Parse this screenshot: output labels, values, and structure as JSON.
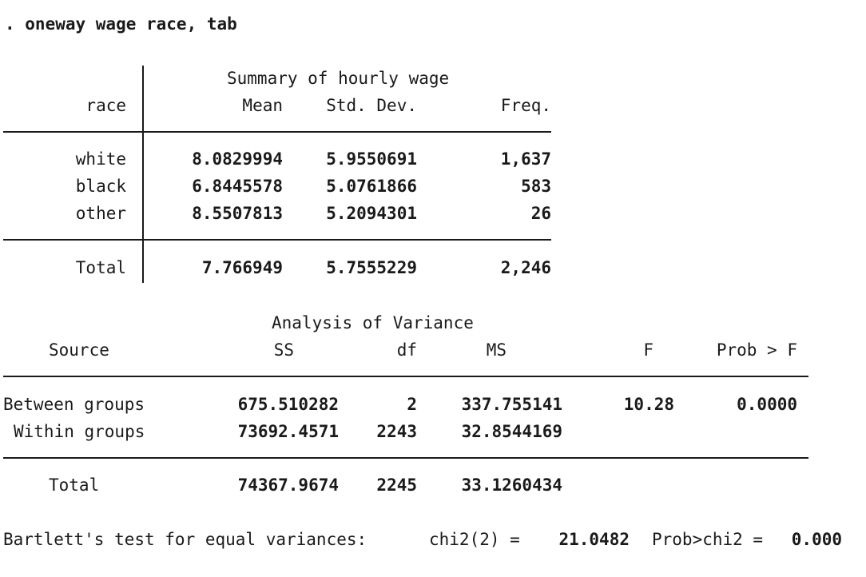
{
  "command": ". oneway wage race, tab",
  "summary": {
    "super_header": "Summary of hourly wage",
    "row_header": "race",
    "columns": [
      "Mean",
      "Std. Dev.",
      "Freq."
    ],
    "rows": [
      {
        "label": "white",
        "mean": "8.0829994",
        "sd": "5.9550691",
        "freq": "1,637"
      },
      {
        "label": "black",
        "mean": "6.8445578",
        "sd": "5.0761866",
        "freq": "583"
      },
      {
        "label": "other",
        "mean": "8.5507813",
        "sd": "5.2094301",
        "freq": "26"
      }
    ],
    "total": {
      "label": "Total",
      "mean": "7.766949",
      "sd": "5.7555229",
      "freq": "2,246"
    }
  },
  "anova": {
    "super_header": "Analysis of Variance",
    "columns": {
      "source": "Source",
      "ss": "SS",
      "df": "df",
      "ms": "MS",
      "f": "F",
      "prob": "Prob > F"
    },
    "rows": [
      {
        "label": "Between groups",
        "ss": "675.510282",
        "df": "2",
        "ms": "337.755141",
        "f": "10.28",
        "prob": "0.0000"
      },
      {
        "label": "Within groups",
        "ss": "73692.4571",
        "df": "2243",
        "ms": "32.8544169",
        "f": "",
        "prob": ""
      }
    ],
    "total": {
      "label": "Total",
      "ss": "74367.9674",
      "df": "2245",
      "ms": "33.1260434"
    }
  },
  "bartlett": {
    "label": "Bartlett's test for equal variances:",
    "chi_label": "chi2(2) =",
    "chi_value": "21.0482",
    "prob_label": "Prob>chi2 =",
    "prob_value": "0.000"
  }
}
